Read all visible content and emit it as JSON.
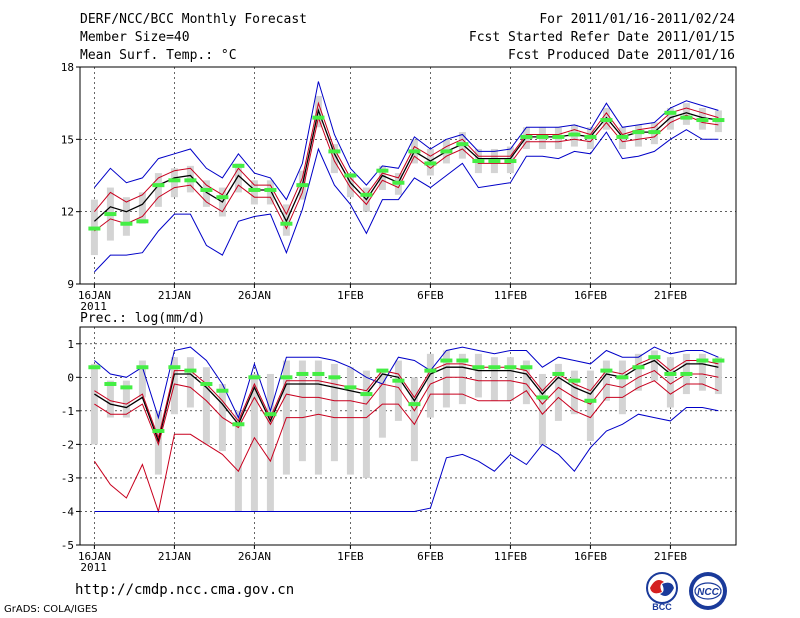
{
  "header": {
    "title": "DERF/NCC/BCC Monthly Forecast",
    "member_size": "Member Size=40",
    "variable_top": "Mean Surf. Temp.: °C",
    "period": "For 2011/01/16-2011/02/24",
    "fcst_started": "Fcst Started Refer Date 2011/01/15",
    "fcst_produced": "Fcst Produced Date 2011/01/16"
  },
  "footer": {
    "url": "http://cmdp.ncc.cma.gov.cn",
    "grads": "GrADS: COLA/IGES",
    "logo_left_text": "BCC",
    "logo_right_text": "NCC"
  },
  "colors": {
    "max_min": "#0000c8",
    "mean": "#000000",
    "spread": "#c8001e",
    "box": "#d4d4d4",
    "obs": "#44ee44",
    "grid": "#000000"
  },
  "chart_data": [
    {
      "type": "line",
      "title": "Mean Surf. Temp.: °C",
      "xlabel": "",
      "ylabel": "",
      "xticks": [
        "16JAN\n2011",
        "21JAN",
        "26JAN",
        "1FEB",
        "6FEB",
        "11FEB",
        "16FEB",
        "21FEB"
      ],
      "tick_days": [
        0,
        5,
        10,
        16,
        21,
        26,
        31,
        36
      ],
      "ylim": [
        9,
        18
      ],
      "yticks": [
        9,
        12,
        15,
        18
      ],
      "x_days": [
        0,
        1,
        2,
        3,
        4,
        5,
        6,
        7,
        8,
        9,
        10,
        11,
        12,
        13,
        14,
        15,
        16,
        17,
        18,
        19,
        20,
        21,
        22,
        23,
        24,
        25,
        26,
        27,
        28,
        29,
        30,
        31,
        32,
        33,
        34,
        35,
        36,
        37,
        38,
        39
      ],
      "series": [
        {
          "name": "max",
          "values": [
            13.0,
            13.8,
            13.2,
            13.4,
            14.2,
            14.4,
            14.6,
            13.8,
            13.4,
            14.4,
            13.6,
            13.4,
            12.5,
            14.0,
            17.4,
            15.2,
            13.8,
            13.1,
            13.9,
            13.8,
            15.1,
            14.6,
            15.0,
            15.2,
            14.5,
            14.5,
            14.6,
            15.5,
            15.5,
            15.5,
            15.6,
            15.4,
            16.5,
            15.5,
            15.6,
            15.7,
            16.3,
            16.6,
            16.4,
            16.2
          ]
        },
        {
          "name": "upper",
          "values": [
            12.0,
            12.8,
            12.4,
            12.7,
            13.4,
            13.7,
            13.8,
            13.1,
            12.7,
            13.8,
            13.1,
            13.1,
            11.9,
            13.4,
            16.5,
            14.6,
            13.4,
            12.7,
            13.6,
            13.4,
            14.7,
            14.3,
            14.7,
            15.0,
            14.3,
            14.3,
            14.3,
            15.2,
            15.2,
            15.2,
            15.4,
            15.2,
            16.1,
            15.2,
            15.4,
            15.5,
            16.1,
            16.3,
            16.1,
            15.9
          ]
        },
        {
          "name": "mean",
          "values": [
            11.6,
            12.2,
            12.0,
            12.3,
            13.1,
            13.4,
            13.5,
            12.8,
            12.4,
            13.5,
            12.9,
            12.9,
            11.6,
            13.1,
            16.2,
            14.4,
            13.2,
            12.5,
            13.5,
            13.2,
            14.5,
            14.1,
            14.5,
            14.8,
            14.2,
            14.2,
            14.2,
            15.1,
            15.1,
            15.1,
            15.2,
            15.1,
            15.9,
            15.1,
            15.3,
            15.3,
            15.9,
            16.1,
            15.9,
            15.8
          ]
        },
        {
          "name": "lower",
          "values": [
            11.2,
            11.7,
            11.5,
            11.8,
            12.6,
            13.0,
            13.1,
            12.4,
            12.0,
            13.1,
            12.6,
            12.6,
            11.3,
            12.8,
            15.9,
            14.1,
            13.0,
            12.3,
            13.3,
            13.0,
            14.3,
            13.8,
            14.3,
            14.6,
            14.0,
            14.0,
            14.0,
            14.9,
            14.9,
            14.9,
            15.0,
            14.9,
            15.7,
            14.9,
            15.0,
            15.1,
            15.7,
            16.0,
            15.7,
            15.6
          ]
        },
        {
          "name": "min",
          "values": [
            9.5,
            10.2,
            10.2,
            10.3,
            11.2,
            11.9,
            11.9,
            10.6,
            10.2,
            11.6,
            11.8,
            11.9,
            10.3,
            12.1,
            14.6,
            13.1,
            12.3,
            11.1,
            12.5,
            12.5,
            13.4,
            13.0,
            13.5,
            14.0,
            13.0,
            13.1,
            13.2,
            14.3,
            14.3,
            14.2,
            14.5,
            14.4,
            15.3,
            14.2,
            14.3,
            14.5,
            15.0,
            15.4,
            15.0,
            15.0
          ]
        }
      ],
      "boxes": [
        [
          10.2,
          12.5
        ],
        [
          10.8,
          13.0
        ],
        [
          11.0,
          12.6
        ],
        [
          11.5,
          12.8
        ],
        [
          12.2,
          13.6
        ],
        [
          12.6,
          13.8
        ],
        [
          12.8,
          13.9
        ],
        [
          12.2,
          13.3
        ],
        [
          11.8,
          13.0
        ],
        [
          12.8,
          14.0
        ],
        [
          12.3,
          13.3
        ],
        [
          12.3,
          13.3
        ],
        [
          11.0,
          12.3
        ],
        [
          12.5,
          13.7
        ],
        [
          15.5,
          16.8
        ],
        [
          13.6,
          14.8
        ],
        [
          12.6,
          13.6
        ],
        [
          12.0,
          13.0
        ],
        [
          12.9,
          13.9
        ],
        [
          12.7,
          13.6
        ],
        [
          14.0,
          15.0
        ],
        [
          13.5,
          14.6
        ],
        [
          14.0,
          15.0
        ],
        [
          14.2,
          15.3
        ],
        [
          13.6,
          14.6
        ],
        [
          13.6,
          14.6
        ],
        [
          13.6,
          14.7
        ],
        [
          14.6,
          15.5
        ],
        [
          14.6,
          15.5
        ],
        [
          14.6,
          15.5
        ],
        [
          14.7,
          15.6
        ],
        [
          14.6,
          15.5
        ],
        [
          15.4,
          16.3
        ],
        [
          14.6,
          15.5
        ],
        [
          14.7,
          15.6
        ],
        [
          14.8,
          15.7
        ],
        [
          15.4,
          16.3
        ],
        [
          15.6,
          16.5
        ],
        [
          15.4,
          16.3
        ],
        [
          15.3,
          16.2
        ]
      ],
      "observed": [
        11.3,
        11.9,
        11.5,
        11.6,
        13.1,
        13.3,
        13.3,
        12.9,
        12.6,
        13.9,
        12.9,
        12.9,
        11.5,
        13.1,
        15.9,
        14.5,
        13.5,
        12.7,
        13.7,
        13.2,
        14.5,
        14.0,
        14.5,
        14.8,
        14.1,
        14.1,
        14.1,
        15.1,
        15.1,
        15.1,
        15.2,
        15.1,
        15.8,
        15.1,
        15.3,
        15.3,
        16.1,
        15.9,
        15.8,
        15.8
      ]
    },
    {
      "type": "line",
      "title": "Prec.: log(mm/d)",
      "xlabel": "",
      "ylabel": "",
      "xticks": [
        "16JAN\n2011",
        "21JAN",
        "26JAN",
        "1FEB",
        "6FEB",
        "11FEB",
        "16FEB",
        "21FEB"
      ],
      "tick_days": [
        0,
        5,
        10,
        16,
        21,
        26,
        31,
        36
      ],
      "ylim": [
        -5,
        1.5
      ],
      "yticks": [
        -5,
        -4,
        -3,
        -2,
        -1,
        0,
        1
      ],
      "x_days": [
        0,
        1,
        2,
        3,
        4,
        5,
        6,
        7,
        8,
        9,
        10,
        11,
        12,
        13,
        14,
        15,
        16,
        17,
        18,
        19,
        20,
        21,
        22,
        23,
        24,
        25,
        26,
        27,
        28,
        29,
        30,
        31,
        32,
        33,
        34,
        35,
        36,
        37,
        38,
        39
      ],
      "series": [
        {
          "name": "max",
          "values": [
            0.5,
            0.1,
            0.0,
            0.3,
            -1.2,
            0.8,
            0.9,
            0.5,
            -0.2,
            -1.2,
            0.4,
            -1.0,
            0.6,
            0.6,
            0.6,
            0.5,
            0.3,
            0.0,
            -0.2,
            0.6,
            0.5,
            0.2,
            0.8,
            0.9,
            0.8,
            0.7,
            0.8,
            0.8,
            0.3,
            0.6,
            0.5,
            0.4,
            0.8,
            0.6,
            0.6,
            0.9,
            0.7,
            0.8,
            0.8,
            0.6
          ]
        },
        {
          "name": "mean",
          "values": [
            -0.5,
            -0.8,
            -0.9,
            -0.6,
            -1.9,
            0.1,
            0.1,
            -0.3,
            -0.8,
            -1.4,
            -0.3,
            -1.3,
            -0.2,
            -0.2,
            -0.2,
            -0.3,
            -0.4,
            -0.5,
            0.1,
            0.0,
            -0.7,
            0.1,
            0.3,
            0.3,
            0.2,
            0.2,
            0.2,
            0.1,
            -0.5,
            0.0,
            -0.3,
            -0.5,
            0.1,
            0.0,
            0.3,
            0.5,
            0.1,
            0.4,
            0.4,
            0.3
          ]
        },
        {
          "name": "upper",
          "values": [
            -0.4,
            -0.7,
            -0.8,
            -0.5,
            -1.8,
            0.2,
            0.2,
            -0.2,
            -0.7,
            -1.3,
            -0.2,
            -1.2,
            -0.1,
            -0.1,
            -0.1,
            -0.2,
            -0.3,
            -0.4,
            0.2,
            0.1,
            -0.6,
            0.2,
            0.4,
            0.4,
            0.3,
            0.3,
            0.3,
            0.2,
            -0.4,
            0.1,
            -0.2,
            -0.4,
            0.2,
            0.1,
            0.4,
            0.6,
            0.2,
            0.5,
            0.5,
            0.4
          ]
        },
        {
          "name": "lower",
          "values": [
            -0.8,
            -1.1,
            -1.1,
            -0.8,
            -2.0,
            -0.2,
            -0.3,
            -0.7,
            -1.2,
            -1.5,
            -0.6,
            -1.4,
            -0.5,
            -0.6,
            -0.6,
            -0.7,
            -0.7,
            -0.8,
            -0.2,
            -0.3,
            -1.0,
            -0.2,
            0.0,
            0.0,
            -0.1,
            -0.1,
            -0.1,
            -0.2,
            -0.8,
            -0.3,
            -0.6,
            -0.8,
            -0.2,
            -0.3,
            0.0,
            0.2,
            -0.2,
            0.1,
            0.1,
            0.0
          ]
        },
        {
          "name": "spread_low",
          "values": [
            -2.5,
            -3.2,
            -3.6,
            -2.6,
            -4.0,
            -1.7,
            -1.7,
            -2.0,
            -2.3,
            -2.8,
            -1.8,
            -2.5,
            -1.2,
            -1.2,
            -1.1,
            -1.2,
            -1.2,
            -1.2,
            -0.8,
            -0.8,
            -1.4,
            -0.5,
            -0.5,
            -0.5,
            -0.7,
            -0.7,
            -0.7,
            -0.4,
            -1.1,
            -0.6,
            -1.0,
            -1.2,
            -0.6,
            -0.6,
            -0.3,
            -0.1,
            -0.5,
            -0.2,
            -0.2,
            -0.4
          ]
        },
        {
          "name": "min",
          "values": [
            -4.0,
            -4.0,
            -4.0,
            -4.0,
            -4.0,
            -4.0,
            -4.0,
            -4.0,
            -4.0,
            -4.0,
            -4.0,
            -4.0,
            -4.0,
            -4.0,
            -4.0,
            -4.0,
            -4.0,
            -4.0,
            -4.0,
            -4.0,
            -4.0,
            -3.9,
            -2.4,
            -2.3,
            -2.5,
            -2.8,
            -2.3,
            -2.6,
            -2.0,
            -2.3,
            -2.8,
            -2.1,
            -1.6,
            -1.4,
            -1.1,
            -1.2,
            -1.3,
            -0.9,
            -0.9,
            -1.0
          ]
        }
      ],
      "boxes": [
        [
          -2.0,
          0.4
        ],
        [
          -1.2,
          -0.1
        ],
        [
          -1.2,
          -0.1
        ],
        [
          -0.6,
          0.5
        ],
        [
          -2.9,
          -1.0
        ],
        [
          -1.1,
          0.6
        ],
        [
          -0.9,
          0.6
        ],
        [
          -2.0,
          0.3
        ],
        [
          -2.2,
          -0.2
        ],
        [
          -4.0,
          -1.0
        ],
        [
          -4.0,
          0.1
        ],
        [
          -4.0,
          0.1
        ],
        [
          -2.9,
          0.5
        ],
        [
          -2.5,
          0.5
        ],
        [
          -2.9,
          0.5
        ],
        [
          -2.5,
          0.4
        ],
        [
          -2.9,
          0.3
        ],
        [
          -3.0,
          0.2
        ],
        [
          -1.8,
          0.2
        ],
        [
          -1.3,
          0.5
        ],
        [
          -2.5,
          0.0
        ],
        [
          -1.2,
          0.7
        ],
        [
          -0.9,
          0.8
        ],
        [
          -0.8,
          0.7
        ],
        [
          -0.6,
          0.7
        ],
        [
          -0.7,
          0.6
        ],
        [
          -0.7,
          0.6
        ],
        [
          -0.8,
          0.5
        ],
        [
          -2.0,
          0.1
        ],
        [
          -1.3,
          0.4
        ],
        [
          -1.1,
          0.2
        ],
        [
          -1.9,
          0.2
        ],
        [
          -0.7,
          0.5
        ],
        [
          -1.1,
          0.5
        ],
        [
          -0.4,
          0.7
        ],
        [
          -0.1,
          0.8
        ],
        [
          -0.9,
          0.6
        ],
        [
          -0.5,
          0.7
        ],
        [
          -0.4,
          0.7
        ],
        [
          -0.5,
          0.6
        ]
      ],
      "observed": [
        0.3,
        -0.2,
        -0.3,
        0.3,
        -1.6,
        0.3,
        0.2,
        -0.2,
        -0.4,
        -1.4,
        0.0,
        -1.1,
        0.0,
        0.1,
        0.1,
        0.0,
        -0.3,
        -0.5,
        0.2,
        -0.1,
        -0.8,
        0.2,
        0.5,
        0.5,
        0.3,
        0.3,
        0.3,
        0.3,
        -0.6,
        0.1,
        -0.1,
        -0.7,
        0.2,
        0.0,
        0.3,
        0.6,
        0.1,
        0.1,
        0.5,
        0.5
      ]
    }
  ]
}
